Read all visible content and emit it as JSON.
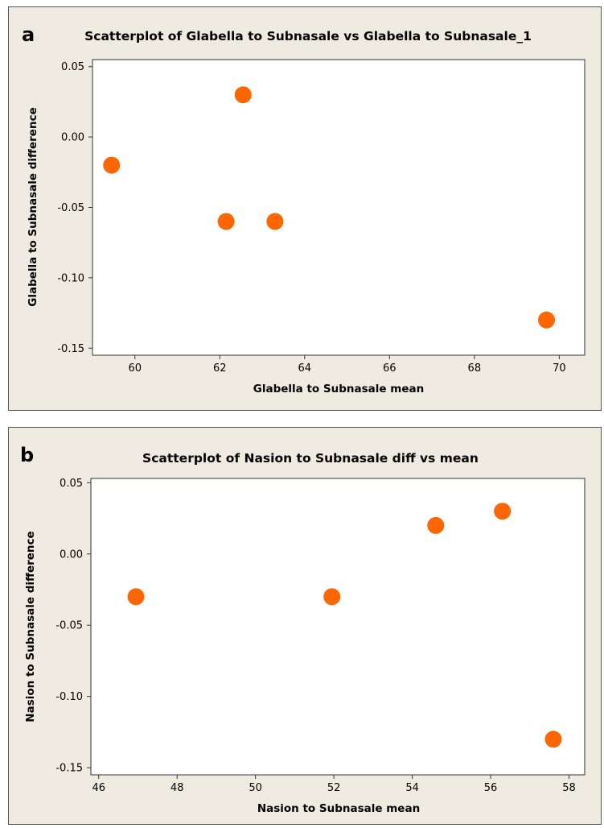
{
  "chart_data": [
    {
      "type": "scatter",
      "panel_letter": "a",
      "title": "Scatterplot of Glabella to Subnasale vs Glabella to Subnasale_1",
      "xlabel": "Glabella to Subnasale mean",
      "ylabel": "Glabella to Subnasale difference",
      "xlim": [
        59,
        70.6
      ],
      "ylim": [
        -0.155,
        0.055
      ],
      "xticks": [
        60,
        62,
        64,
        66,
        68,
        70
      ],
      "xtick_labels": [
        "60",
        "62",
        "64",
        "66",
        "68",
        "70"
      ],
      "yticks": [
        0.05,
        0.0,
        -0.05,
        -0.1,
        -0.15
      ],
      "ytick_labels": [
        "0.05",
        "0.00",
        "-0.05",
        "-0.10",
        "-0.15"
      ],
      "marker_color": "#ff6600",
      "grid": false,
      "series": [
        {
          "x": [
            59.45,
            62.55,
            62.15,
            63.3,
            69.7
          ],
          "y": [
            -0.02,
            0.03,
            -0.06,
            -0.06,
            -0.13
          ]
        }
      ]
    },
    {
      "type": "scatter",
      "panel_letter": "b",
      "title": "Scatterplot of Nasion to Subnasale diff vs mean",
      "xlabel": "Nasion to Subnasale mean",
      "ylabel": "Nasion to Subnasale difference",
      "xlim": [
        45.8,
        58.4
      ],
      "ylim": [
        -0.155,
        0.053
      ],
      "xticks": [
        46,
        48,
        50,
        52,
        54,
        56,
        58
      ],
      "xtick_labels": [
        "46",
        "48",
        "50",
        "52",
        "54",
        "56",
        "58"
      ],
      "yticks": [
        0.05,
        0.0,
        -0.05,
        -0.1,
        -0.15
      ],
      "ytick_labels": [
        "0.05",
        "0.00",
        "-0.05",
        "-0.10",
        "-0.15"
      ],
      "marker_color": "#ff6600",
      "grid": false,
      "series": [
        {
          "x": [
            46.95,
            51.95,
            54.6,
            56.3,
            57.6
          ],
          "y": [
            -0.03,
            -0.03,
            0.02,
            0.03,
            -0.13
          ]
        }
      ]
    }
  ]
}
